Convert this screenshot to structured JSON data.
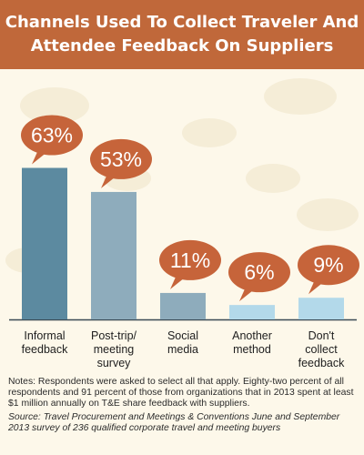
{
  "header": {
    "title": "Channels Used To Collect Traveler And Attendee Feedback On Suppliers"
  },
  "colors": {
    "header_bg": "#c0683a",
    "page_bg": "#fdf8ea",
    "bubble": "#c6643a",
    "bar_dark": "#5c8aa0",
    "bar_mid": "#8eacbc",
    "bar_light": "#b3d9ea"
  },
  "chart_data": {
    "type": "bar",
    "title": "Channels Used To Collect Traveler And Attendee Feedback On Suppliers",
    "categories": [
      [
        "Informal",
        "feedback"
      ],
      [
        "Post-trip/",
        "meeting",
        "survey"
      ],
      [
        "Social",
        "media"
      ],
      [
        "Another",
        "method"
      ],
      [
        "Don't",
        "collect",
        "feedback"
      ]
    ],
    "values": [
      63,
      53,
      11,
      6,
      9
    ],
    "value_labels": [
      "63%",
      "53%",
      "11%",
      "6%",
      "9%"
    ],
    "bar_colors": [
      "#5c8aa0",
      "#8eacbc",
      "#8eacbc",
      "#b3d9ea",
      "#b3d9ea"
    ],
    "ylim": [
      0,
      70
    ],
    "xlabel": "",
    "ylabel": "",
    "grid": false,
    "legend": "none"
  },
  "notes": {
    "text": "Notes: Respondents were asked to select all that apply. Eighty-two percent of all respondents and 91 percent of those from organizations that in 2013 spent at least $1 million annually on T&E share feedback with suppliers.",
    "source": "Source: Travel Procurement and Meetings & Conventions June and September 2013 survey of 236 qualified corporate travel and meeting buyers"
  }
}
